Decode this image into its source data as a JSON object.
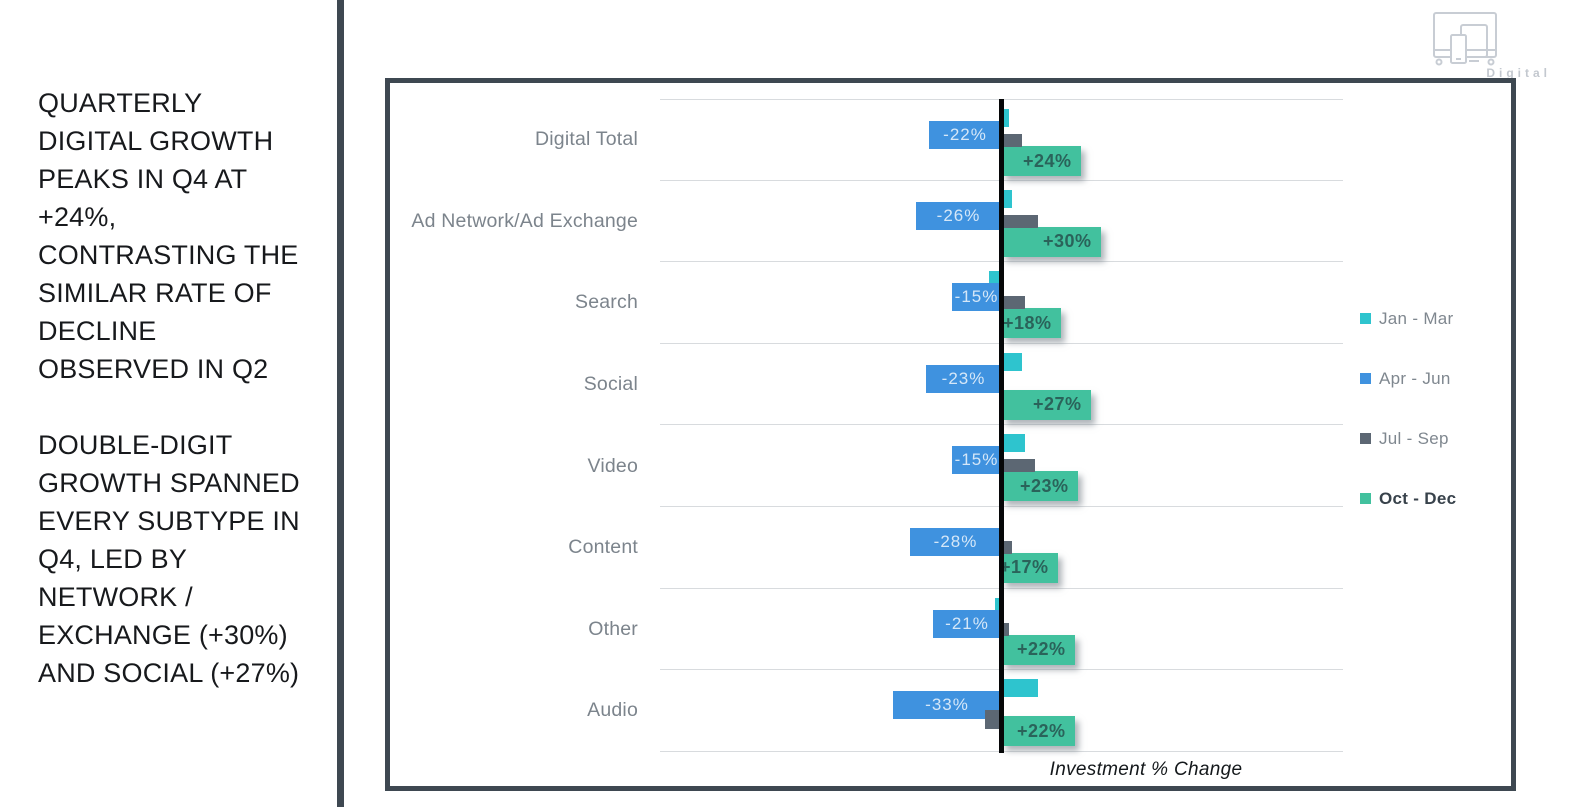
{
  "left_panel": {
    "paragraph1": "QUARTERLY DIGITAL GROWTH PEAKS IN Q4 AT +24%, CONTRASTING THE SIMILAR RATE OF DECLINE OBSERVED IN Q2",
    "paragraph2": "DOUBLE-DIGIT GROWTH SPANNED EVERY SUBTYPE IN Q4, LED BY NETWORK / EXCHANGE (+30%) AND SOCIAL (+27%)"
  },
  "logo": {
    "icon": "devices-icon",
    "label": "Digital",
    "color": "#c8cdd4"
  },
  "chart_data": {
    "type": "bar",
    "orientation": "horizontal",
    "title": "",
    "xlabel": "Investment % Change",
    "grid": "horizontal-row-separators",
    "legend_position": "right",
    "zero_axis": true,
    "categories": [
      "Digital Total",
      "Ad Network/Ad Exchange",
      "Search",
      "Social",
      "Video",
      "Content",
      "Other",
      "Audio"
    ],
    "series": [
      {
        "name": "Jan - Mar",
        "color": "#2ec4ce",
        "values": [
          2,
          3,
          -4,
          6,
          7,
          0,
          -2,
          11
        ]
      },
      {
        "name": "Apr - Jun",
        "color": "#3f92df",
        "values": [
          -22,
          -26,
          -15,
          -23,
          -15,
          -28,
          -21,
          -33
        ],
        "labels": [
          "-22%",
          "-26%",
          "-15%",
          "-23%",
          "-15%",
          "-28%",
          "-21%",
          "-33%"
        ]
      },
      {
        "name": "Jul - Sep",
        "color": "#5c6773",
        "values": [
          6,
          11,
          7,
          0,
          10,
          3,
          2,
          -5
        ]
      },
      {
        "name": "Oct - Dec",
        "color": "#42c19e",
        "emphasis": true,
        "values": [
          24,
          30,
          18,
          27,
          23,
          17,
          22,
          22
        ],
        "labels": [
          "+24%",
          "+30%",
          "+18%",
          "+27%",
          "+23%",
          "+17%",
          "+22%",
          "+22%"
        ]
      }
    ]
  }
}
